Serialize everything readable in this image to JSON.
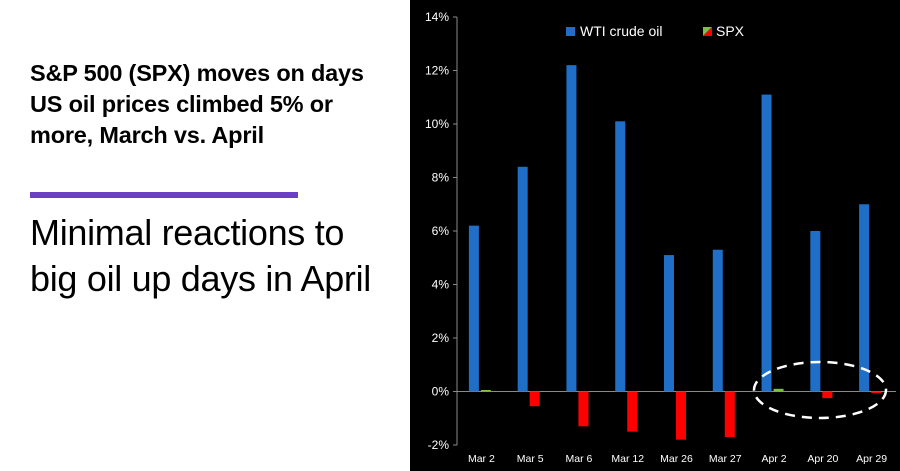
{
  "headline": "S&P 500 (SPX) moves on days US oil prices climbed 5% or more, March vs. April",
  "subheadline": "Minimal reactions to big oil up days in April",
  "colors": {
    "accent_bar": "#6a3fc4",
    "oil": "#1f6fc8",
    "spx_negative": "#ff0000",
    "spx_positive": "#7cc242",
    "chart_bg": "#000000"
  },
  "chart_data": {
    "type": "bar",
    "title": "",
    "xlabel": "",
    "ylabel": "",
    "categories": [
      "Mar 2",
      "Mar 5",
      "Mar 6",
      "Mar 12",
      "Mar 26",
      "Mar 27",
      "Apr 2",
      "Apr 20",
      "Apr 29"
    ],
    "series": [
      {
        "name": "WTI crude oil",
        "values": [
          6.2,
          8.4,
          12.2,
          10.1,
          5.1,
          5.3,
          11.1,
          6.0,
          7.0
        ]
      },
      {
        "name": "SPX",
        "values": [
          0.03,
          -0.55,
          -1.3,
          -1.5,
          -1.8,
          -1.7,
          0.1,
          -0.25,
          -0.05
        ]
      }
    ],
    "ylim": [
      -2,
      14
    ],
    "yticks": [
      -2,
      0,
      2,
      4,
      6,
      8,
      10,
      12,
      14
    ],
    "ytick_labels": [
      "-2%",
      "0%",
      "2%",
      "4%",
      "6%",
      "8%",
      "10%",
      "12%",
      "14%"
    ],
    "grid": false,
    "legend_position": "top-right",
    "annotation": "dashed ellipse highlighting the April days"
  }
}
